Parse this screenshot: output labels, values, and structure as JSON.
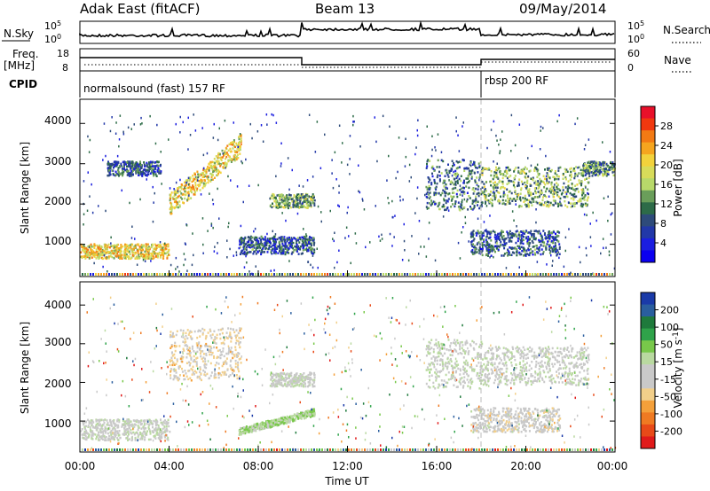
{
  "header": {
    "title": "Adak East (fitACF)",
    "beam": "Beam 13",
    "date": "09/May/2014"
  },
  "status_panels": {
    "nsky": {
      "label": "N.Sky",
      "right_label": "N.Search",
      "left_ticks": [
        "10^5",
        "10^0"
      ],
      "right_ticks": [
        "10^5",
        "10^0"
      ]
    },
    "freq": {
      "label_line1": "Freq.",
      "label_line2": "[MHz]",
      "ticks": [
        "18",
        "8"
      ],
      "right_label": "Nave",
      "right_ticks": [
        "60",
        "0"
      ]
    },
    "cpid": {
      "label": "CPID",
      "segments": [
        "normalsound (fast) 157 RF",
        "rbsp 200 RF"
      ]
    }
  },
  "power_panel": {
    "ylabel": "Slant Range [km]",
    "yticks": [
      "4000",
      "3000",
      "2000",
      "1000"
    ],
    "colorbar": {
      "label": "Power [dB]",
      "ticks": [
        "28",
        "24",
        "20",
        "16",
        "12",
        "8",
        "4"
      ],
      "colors": [
        "#e8102a",
        "#f0380f",
        "#f27a14",
        "#f5a51f",
        "#f2d23c",
        "#d8dc5a",
        "#b8d96a",
        "#6a9e5a",
        "#2d6b48",
        "#2e4b7a",
        "#2238a8",
        "#1b1ee0",
        "#0b00f0"
      ]
    }
  },
  "velocity_panel": {
    "ylabel": "Slant Range [km]",
    "yticks": [
      "4000",
      "3000",
      "2000",
      "1000"
    ],
    "colorbar": {
      "label": "Velocity [m s^-1]",
      "ticks": [
        "200",
        "100",
        "50",
        "15",
        "-15",
        "-50",
        "-100",
        "-200"
      ],
      "colors": [
        "#1a3aa8",
        "#2a5e9e",
        "#1f7a3c",
        "#2fa34a",
        "#78c84a",
        "#b9d9a0",
        "#c9c9c9",
        "#c9c9c9",
        "#f2cf8a",
        "#f4a03a",
        "#ef7a22",
        "#e84a18",
        "#e01a1a"
      ]
    }
  },
  "xaxis": {
    "label": "Time UT",
    "ticks": [
      "00:00",
      "04:00",
      "08:00",
      "12:00",
      "16:00",
      "20:00",
      "00:00"
    ]
  },
  "chart_data": [
    {
      "type": "heatmap",
      "title": "Power",
      "x_unit": "hours UT",
      "xlim": [
        0,
        24
      ],
      "ylim": [
        200,
        4600
      ],
      "ylabel": "Slant Range [km]",
      "zlabel": "Power [dB]",
      "zlim": [
        0,
        32
      ],
      "blobs": [
        {
          "t": [
            0.0,
            4.0
          ],
          "range": [
            650,
            1050
          ],
          "power": 20
        },
        {
          "t": [
            1.2,
            3.6
          ],
          "range": [
            2700,
            3100
          ],
          "power": 8
        },
        {
          "t": [
            4.0,
            7.2
          ],
          "range": [
            2000,
            3500
          ],
          "power": 20
        },
        {
          "t": [
            7.1,
            10.5
          ],
          "range": [
            750,
            1250
          ],
          "power": 8
        },
        {
          "t": [
            8.5,
            10.5
          ],
          "range": [
            1900,
            2300
          ],
          "power": 14
        },
        {
          "t": [
            15.5,
            18.0
          ],
          "range": [
            1800,
            3200
          ],
          "power": 10
        },
        {
          "t": [
            18.0,
            22.8
          ],
          "range": [
            1900,
            3000
          ],
          "power": 14
        },
        {
          "t": [
            17.5,
            21.5
          ],
          "range": [
            700,
            1400
          ],
          "power": 8
        },
        {
          "t": [
            22.5,
            24.0
          ],
          "range": [
            2700,
            3100
          ],
          "power": 12
        }
      ]
    },
    {
      "type": "heatmap",
      "title": "Velocity",
      "x_unit": "hours UT",
      "xlim": [
        0,
        24
      ],
      "ylim": [
        200,
        4600
      ],
      "ylabel": "Slant Range [km]",
      "zlabel": "Velocity [m s^-1]",
      "zlim": [
        -200,
        200
      ],
      "blobs": [
        {
          "t": [
            0.0,
            4.0
          ],
          "range": [
            500,
            1100
          ],
          "velocity": 0
        },
        {
          "t": [
            4.0,
            7.2
          ],
          "range": [
            2000,
            3500
          ],
          "velocity": -50
        },
        {
          "t": [
            7.1,
            10.5
          ],
          "range": [
            750,
            1250
          ],
          "velocity": 40
        },
        {
          "t": [
            8.5,
            10.5
          ],
          "range": [
            1900,
            2300
          ],
          "velocity": 5
        },
        {
          "t": [
            15.5,
            18.0
          ],
          "range": [
            1800,
            3200
          ],
          "velocity": 10
        },
        {
          "t": [
            18.0,
            22.8
          ],
          "range": [
            1900,
            3000
          ],
          "velocity": 0
        },
        {
          "t": [
            17.5,
            21.5
          ],
          "range": [
            700,
            1400
          ],
          "velocity": -20
        }
      ]
    }
  ]
}
